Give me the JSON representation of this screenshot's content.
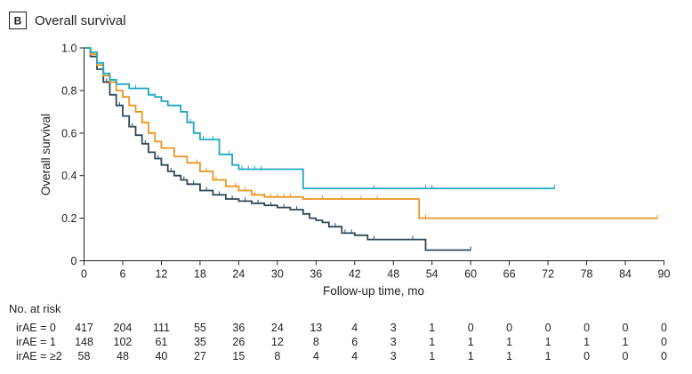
{
  "panel_label": "B",
  "chart_data": {
    "type": "line",
    "title": "Overall survival",
    "xlabel": "Follow-up time, mo",
    "ylabel": "Overall survival",
    "xlim": [
      0,
      90
    ],
    "ylim": [
      0,
      1.0
    ],
    "xticks": [
      0,
      6,
      12,
      18,
      24,
      30,
      36,
      42,
      48,
      54,
      60,
      66,
      72,
      78,
      84,
      90
    ],
    "yticks": [
      0,
      0.2,
      0.4,
      0.6,
      0.8,
      1.0
    ],
    "ytick_labels": [
      "0",
      "0.2",
      "0.4",
      "0.6",
      "0.8",
      "1.0"
    ],
    "grid": false,
    "step": true,
    "series": [
      {
        "key": "irae0",
        "color": "#2f4858",
        "x": [
          0,
          1,
          2,
          3,
          4,
          5,
          6,
          7,
          8,
          9,
          10,
          11,
          12,
          13,
          14,
          15,
          16,
          18,
          20,
          22,
          24,
          26,
          28,
          30,
          32,
          34,
          35,
          36,
          37,
          38,
          40,
          42,
          44,
          46,
          48,
          50,
          53,
          55,
          58,
          60
        ],
        "y": [
          1.0,
          0.96,
          0.9,
          0.84,
          0.78,
          0.73,
          0.68,
          0.63,
          0.59,
          0.55,
          0.51,
          0.48,
          0.45,
          0.42,
          0.4,
          0.38,
          0.36,
          0.33,
          0.31,
          0.29,
          0.28,
          0.27,
          0.26,
          0.25,
          0.24,
          0.22,
          0.2,
          0.19,
          0.18,
          0.16,
          0.13,
          0.12,
          0.1,
          0.1,
          0.1,
          0.1,
          0.05,
          0.05,
          0.05,
          0.05
        ],
        "censor": [
          3.5,
          5.5,
          7.5,
          9.5,
          11.5,
          13.5,
          15.5,
          17,
          19,
          21,
          23,
          25,
          27,
          29,
          31,
          33,
          39,
          40.5,
          41.5,
          45,
          51,
          60
        ]
      },
      {
        "key": "irae1",
        "color": "#e8961e",
        "x": [
          0,
          1,
          2,
          3,
          4,
          5,
          6,
          7,
          8,
          9,
          10,
          11,
          12,
          14,
          16,
          18,
          20,
          22,
          24,
          26,
          28,
          30,
          32,
          34,
          40,
          46,
          50,
          52,
          60,
          70,
          80,
          89
        ],
        "y": [
          1.0,
          0.97,
          0.92,
          0.87,
          0.84,
          0.8,
          0.77,
          0.73,
          0.7,
          0.65,
          0.6,
          0.56,
          0.53,
          0.49,
          0.46,
          0.42,
          0.38,
          0.35,
          0.33,
          0.31,
          0.3,
          0.3,
          0.3,
          0.29,
          0.29,
          0.29,
          0.29,
          0.2,
          0.2,
          0.2,
          0.2,
          0.2
        ],
        "censor": [
          4,
          6,
          8,
          10,
          12,
          14,
          16,
          17.5,
          19,
          20.5,
          22,
          23.5,
          25,
          26.5,
          28,
          29,
          30,
          31,
          32,
          37,
          40,
          43,
          45.5,
          53,
          89
        ]
      },
      {
        "key": "irae2",
        "color": "#1fa7c4",
        "x": [
          0,
          1,
          2,
          3,
          4,
          5,
          7,
          10,
          11,
          12,
          13,
          15,
          16,
          17,
          18,
          20,
          21,
          23,
          24,
          26,
          28,
          34,
          36,
          40,
          45,
          50,
          60,
          73
        ],
        "y": [
          1.0,
          0.98,
          0.93,
          0.88,
          0.85,
          0.83,
          0.81,
          0.78,
          0.77,
          0.75,
          0.73,
          0.7,
          0.65,
          0.6,
          0.57,
          0.57,
          0.5,
          0.45,
          0.43,
          0.43,
          0.43,
          0.34,
          0.34,
          0.34,
          0.34,
          0.34,
          0.34,
          0.34
        ],
        "censor": [
          2,
          3,
          5,
          8,
          11,
          16.5,
          18.5,
          20,
          22.5,
          24.5,
          25.5,
          26.5,
          27.5,
          45,
          53,
          54,
          73
        ]
      }
    ]
  },
  "risk_table": {
    "title": "No. at risk",
    "rows": [
      {
        "label": "irAE = 0",
        "values": [
          "417",
          "204",
          "111",
          "55",
          "36",
          "24",
          "13",
          "4",
          "3",
          "1",
          "0",
          "0",
          "0",
          "0",
          "0",
          "0"
        ]
      },
      {
        "label": "irAE = 1",
        "values": [
          "148",
          "102",
          "61",
          "35",
          "26",
          "12",
          "8",
          "6",
          "3",
          "1",
          "1",
          "1",
          "1",
          "1",
          "1",
          "0"
        ]
      },
      {
        "label": "irAE = ≥2",
        "values": [
          "58",
          "48",
          "40",
          "27",
          "15",
          "8",
          "4",
          "4",
          "3",
          "1",
          "1",
          "1",
          "1",
          "0",
          "0",
          "0"
        ]
      }
    ]
  }
}
